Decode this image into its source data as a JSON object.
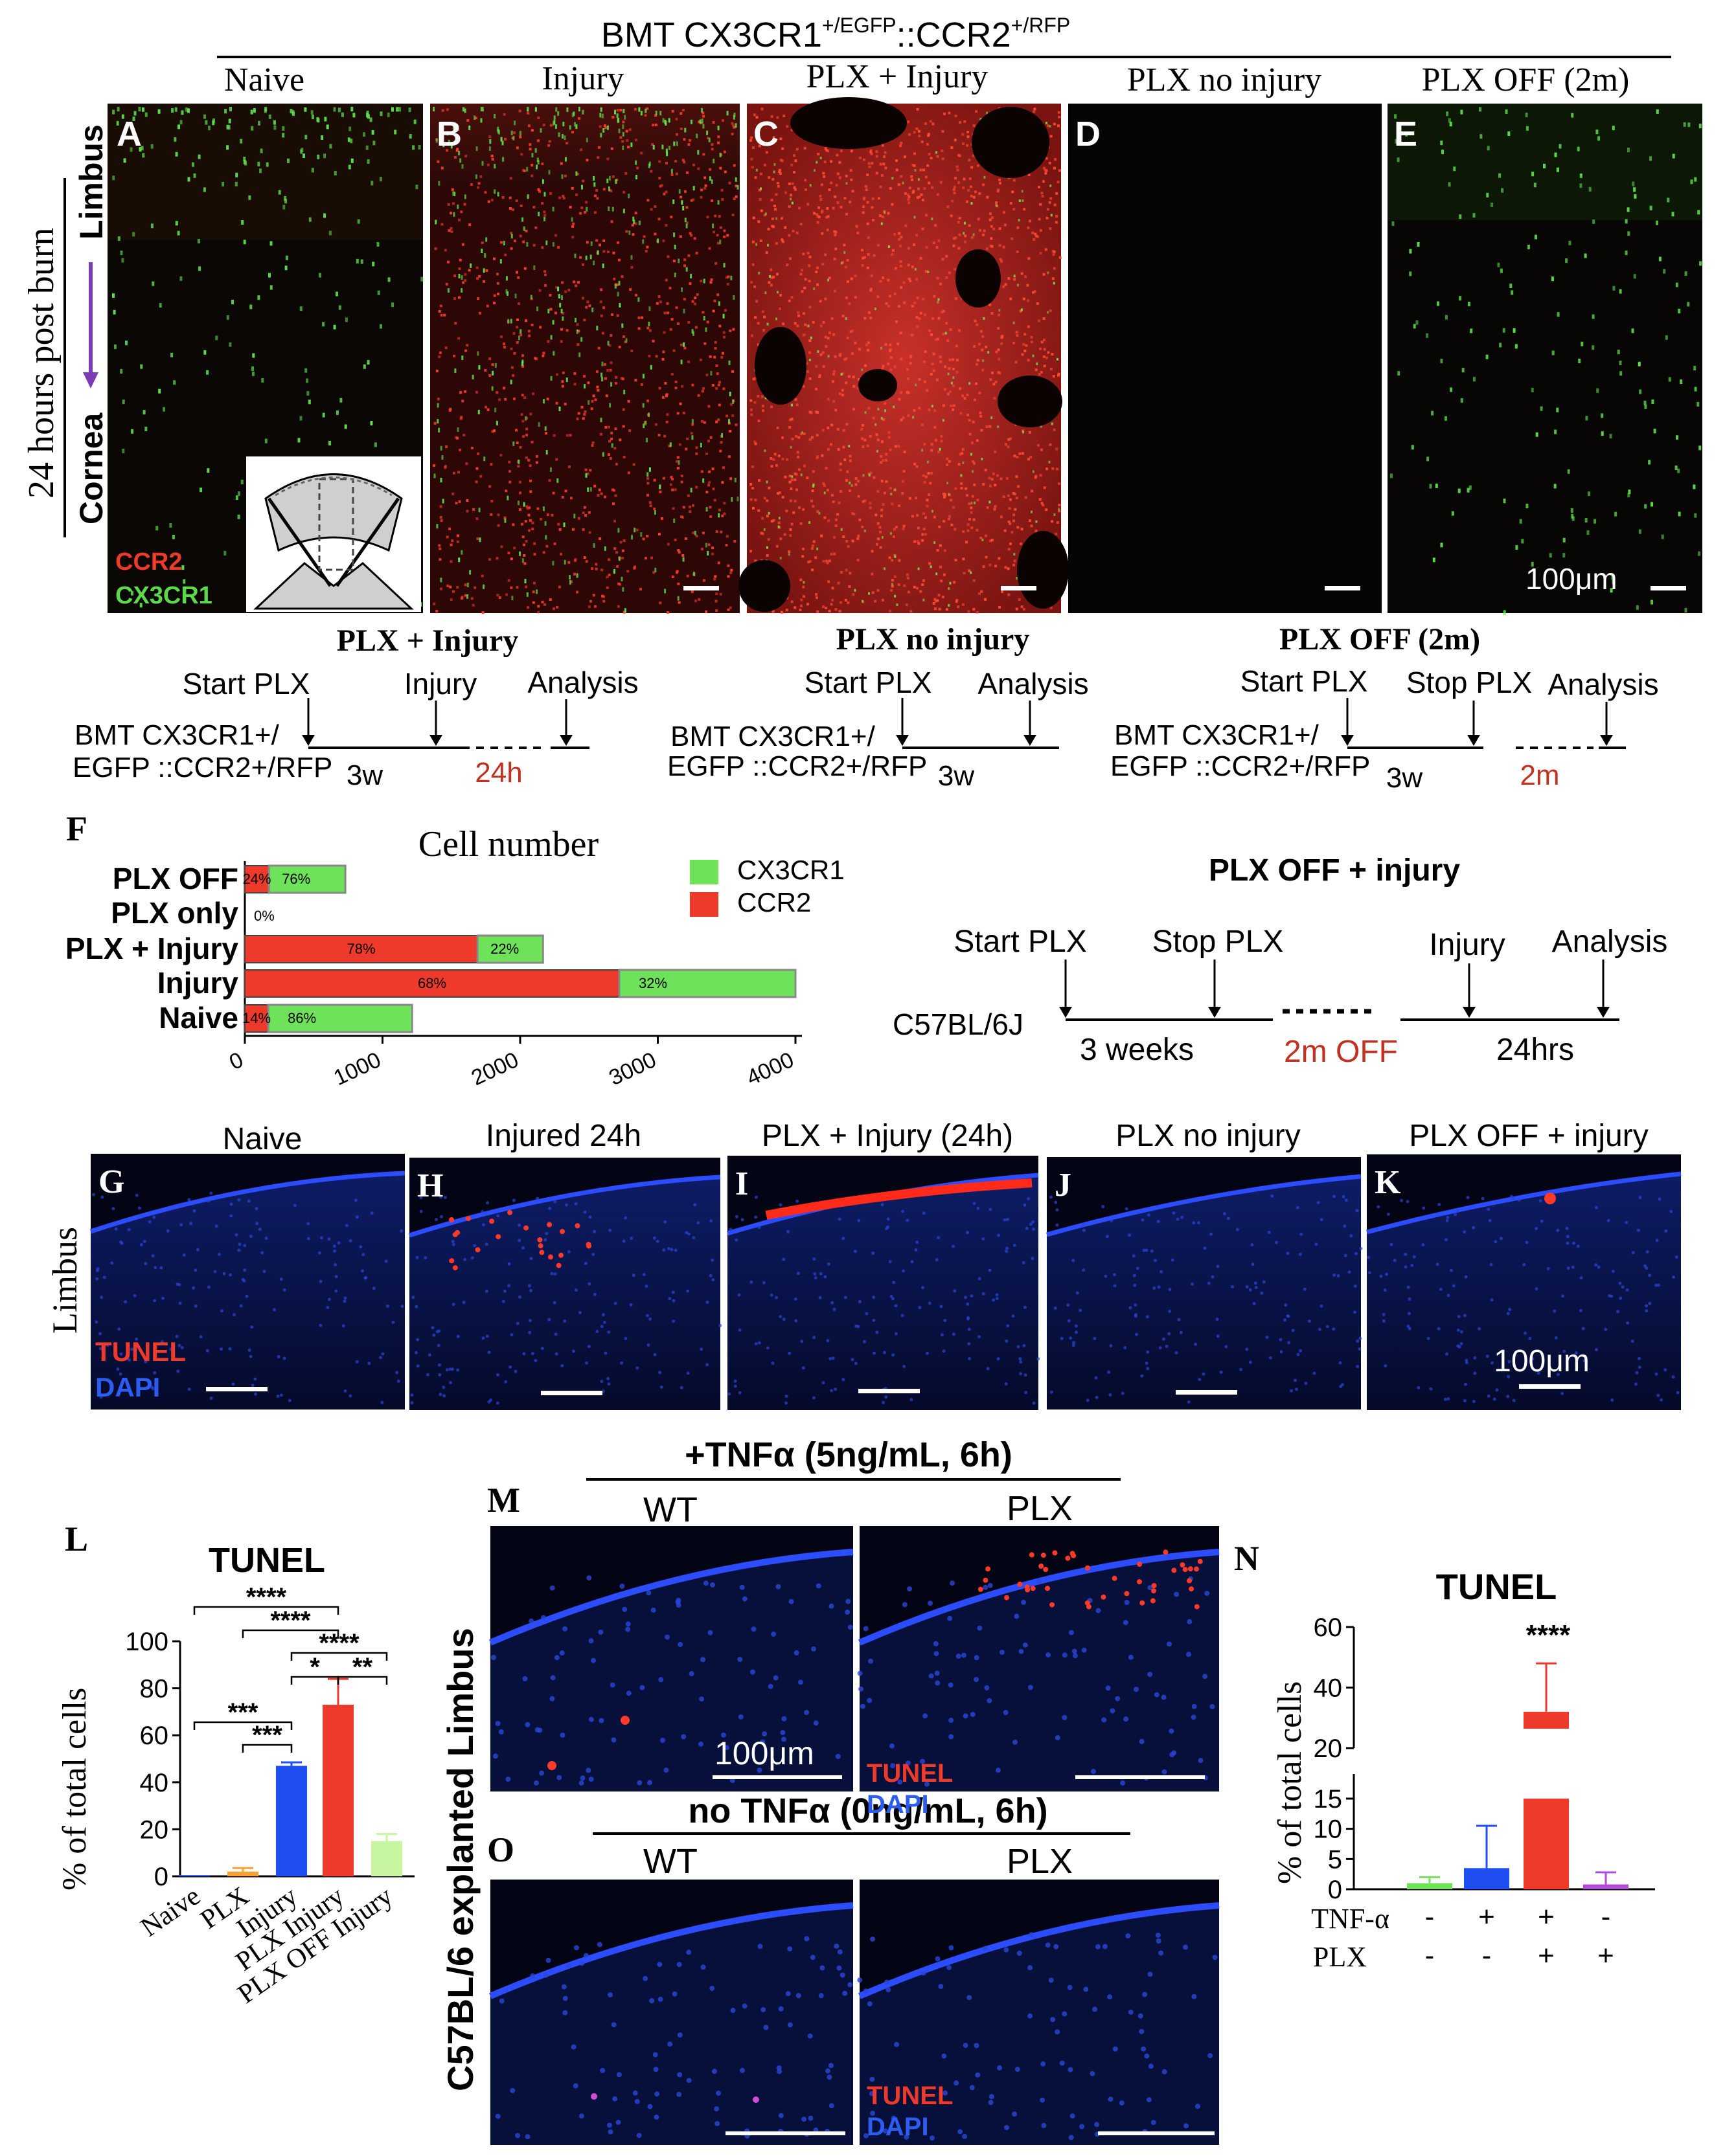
{
  "header": {
    "main": "BMT CX3CR1",
    "sup1": "+/EGFP",
    "mid": "::CCR2",
    "sup2": "+/RFP"
  },
  "top_panels": [
    {
      "letter": "A",
      "title": "Naive"
    },
    {
      "letter": "B",
      "title": "Injury"
    },
    {
      "letter": "C",
      "title": "PLX + Injury"
    },
    {
      "letter": "D",
      "title": "PLX no injury"
    },
    {
      "letter": "E",
      "title": "PLX OFF (2m)"
    }
  ],
  "left_axis": {
    "time": "24 hours post burn",
    "limbus": "Limbus",
    "cornea": "Cornea"
  },
  "legend_A": {
    "ccr2": "CCR2",
    "cx3cr1": "CX3CR1"
  },
  "scale_label": "100μm",
  "timelines": [
    {
      "title": "PLX + Injury",
      "events": [
        "Start PLX",
        "Injury",
        "Analysis"
      ],
      "line1": "BMT CX3CR1+/",
      "line2": "EGFP ::CCR2+/RFP",
      "d1": "3w",
      "d2": "24h"
    },
    {
      "title": "PLX no injury",
      "events": [
        "Start PLX",
        "Analysis"
      ],
      "line1": "BMT CX3CR1+/",
      "line2": "EGFP ::CCR2+/RFP",
      "d1": "3w"
    },
    {
      "title": "PLX OFF (2m)",
      "events": [
        "Start PLX",
        "Stop PLX",
        "Analysis"
      ],
      "line1": "BMT CX3CR1+/",
      "line2": "EGFP ::CCR2+/RFP",
      "d1": "3w",
      "d2": "2m"
    }
  ],
  "timeline_c57": {
    "title": "PLX OFF + injury",
    "events": [
      "Start PLX",
      "Stop PLX",
      "Injury",
      "Analysis"
    ],
    "strain": "C57BL/6J",
    "d1": "3 weeks",
    "d2": "2m OFF",
    "d3": "24hrs"
  },
  "colors": {
    "green": "#6ee35a",
    "red": "#ee3a2a",
    "blue": "#1f4ef2",
    "orange": "#f5a233",
    "lightgreen": "#c8f5a0",
    "purple": "#b04bd6"
  },
  "chart_data": [
    {
      "type": "bar",
      "orientation": "horizontal-stacked",
      "letter": "F",
      "title": "Cell number",
      "categories": [
        "PLX OFF",
        "PLX only",
        "PLX + Injury",
        "Injury",
        "Naive"
      ],
      "series": [
        {
          "name": "CCR2",
          "values": [
            175,
            0,
            1690,
            2720,
            170
          ],
          "pct_labels": [
            "24%",
            "",
            "78%",
            "68%",
            "14%"
          ]
        },
        {
          "name": "CX3CR1",
          "values": [
            555,
            0,
            476,
            1280,
            1045
          ],
          "pct_labels": [
            "76%",
            "",
            "22%",
            "32%",
            "86%"
          ]
        }
      ],
      "zero_label": "0%",
      "xticks": [
        0,
        1000,
        2000,
        3000,
        4000
      ],
      "xtick_labels": [
        "0",
        "1000",
        "2000",
        "3000",
        "4000"
      ],
      "xlim": [
        0,
        4000
      ]
    },
    {
      "type": "bar",
      "letter": "L",
      "title": "TUNEL",
      "ylabel": "% of total cells",
      "categories": [
        "Naive",
        "PLX",
        "Injury",
        "PLX Injury",
        "PLX OFF Injury"
      ],
      "values": [
        0.5,
        2,
        47,
        73,
        15
      ],
      "errors": [
        0,
        1.5,
        1.5,
        11,
        3
      ],
      "colors": [
        "#1f4ef2",
        "#f5a233",
        "#1f4ef2",
        "#ee3a2a",
        "#c8f5a0"
      ],
      "ylim": [
        0,
        100
      ],
      "yticks": [
        0,
        20,
        40,
        60,
        80,
        100
      ],
      "significance": [
        "****",
        "****",
        "****",
        "*",
        "**",
        "***",
        "***"
      ]
    },
    {
      "type": "bar",
      "letter": "N",
      "title": "TUNEL",
      "ylabel": "% of total cells",
      "categories": [
        "TNF- / PLX-",
        "TNF+ / PLX-",
        "TNF+ / PLX+",
        "TNF- / PLX+"
      ],
      "values": [
        1,
        3.5,
        32,
        0.8
      ],
      "errors": [
        1,
        7,
        16,
        2
      ],
      "colors": [
        "#6ee35a",
        "#1f4ef2",
        "#ee3a2a",
        "#b04bd6"
      ],
      "yticks_lower": [
        0,
        5,
        10,
        15
      ],
      "yticks_upper": [
        20,
        40,
        60
      ],
      "significance": "****",
      "row_labels": [
        "TNF-α",
        "PLX"
      ],
      "tnf": [
        "-",
        "+",
        "+",
        "-"
      ],
      "plx": [
        "-",
        "-",
        "+",
        "+"
      ]
    }
  ],
  "tunel_panels": [
    {
      "letter": "G",
      "title": "Naive"
    },
    {
      "letter": "H",
      "title": "Injured 24h"
    },
    {
      "letter": "I",
      "title": "PLX + Injury (24h)"
    },
    {
      "letter": "J",
      "title": "PLX no injury"
    },
    {
      "letter": "K",
      "title": "PLX OFF + injury"
    }
  ],
  "limbus_label": "Limbus",
  "tunel_legend": {
    "tunel": "TUNEL",
    "dapi": "DAPI"
  },
  "explant": {
    "side_label": "C57BL/6 explanted Limbus",
    "m_letter": "M",
    "o_letter": "O",
    "m_title": "+TNFα (5ng/mL, 6h)",
    "o_title": "no TNFα (0ng/mL, 6h)",
    "wt": "WT",
    "plx": "PLX"
  }
}
